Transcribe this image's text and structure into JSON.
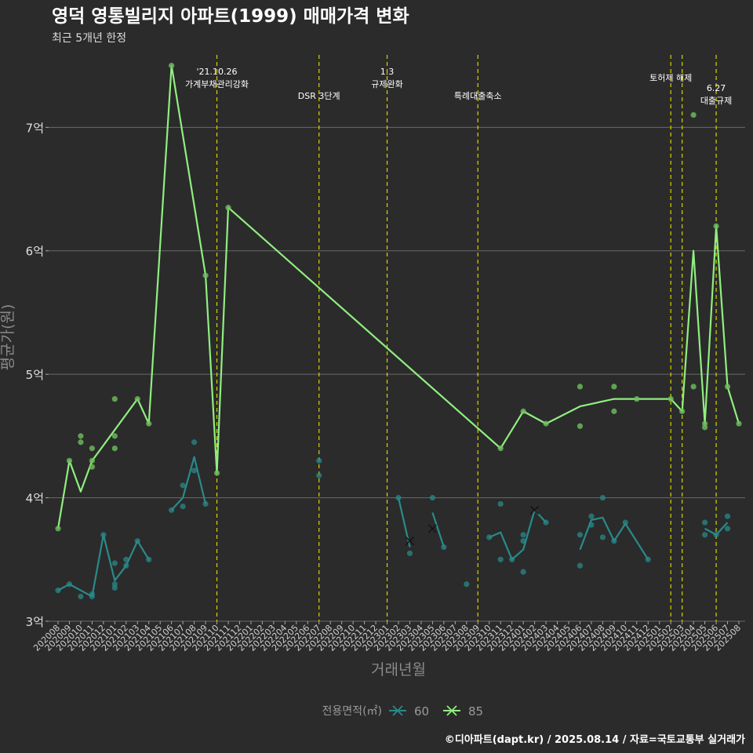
{
  "chart_data": {
    "type": "line",
    "title": "영덕 영통빌리지 아파트(1999) 매매가격 변화",
    "subtitle": "최근 5개년 한정",
    "xlabel": "거래년월",
    "ylabel": "평균가(원)",
    "ylim": [
      3,
      7.65
    ],
    "y_unit": "억",
    "y_ticks": [
      {
        "value": 3,
        "label": "3억"
      },
      {
        "value": 4,
        "label": "4억"
      },
      {
        "value": 5,
        "label": "5억"
      },
      {
        "value": 6,
        "label": "6억"
      },
      {
        "value": 7,
        "label": "7억"
      }
    ],
    "categories": [
      "202008",
      "202009",
      "202010",
      "202011",
      "202012",
      "202101",
      "202102",
      "202103",
      "202104",
      "202105",
      "202106",
      "202107",
      "202108",
      "202109",
      "202110",
      "202111",
      "202112",
      "202201",
      "202202",
      "202203",
      "202204",
      "202205",
      "202206",
      "202207",
      "202208",
      "202209",
      "202210",
      "202211",
      "202212",
      "202301",
      "202302",
      "202303",
      "202304",
      "202305",
      "202306",
      "202307",
      "202308",
      "202309",
      "202310",
      "202311",
      "202312",
      "202401",
      "202402",
      "202403",
      "202404",
      "202405",
      "202406",
      "202407",
      "202408",
      "202409",
      "202410",
      "202411",
      "202412",
      "202501",
      "202502",
      "202503",
      "202504",
      "202505",
      "202506",
      "202507",
      "202508"
    ],
    "grid": true,
    "legend": {
      "title": "전용면적(㎡)",
      "position": "bottom",
      "entries": [
        {
          "name": "60",
          "color": "#2a8a8a"
        },
        {
          "name": "85",
          "color": "#90ee80"
        }
      ]
    },
    "series": [
      {
        "name": "60",
        "color": "#2a8a8a",
        "line_segments": [
          [
            [
              "202008",
              3.25
            ],
            [
              "202009",
              3.3
            ],
            [
              "202011",
              3.2
            ]
          ],
          [
            [
              "202011",
              3.2
            ],
            [
              "202012",
              3.7
            ],
            [
              "202101",
              3.33
            ],
            [
              "202102",
              3.45
            ],
            [
              "202103",
              3.65
            ],
            [
              "202104",
              3.5
            ]
          ],
          [
            [
              "202106",
              3.9
            ],
            [
              "202107",
              4.0
            ],
            [
              "202108",
              4.33
            ],
            [
              "202109",
              3.95
            ]
          ],
          [
            [
              "202302",
              4.0
            ],
            [
              "202303",
              3.6
            ]
          ],
          [
            [
              "202305",
              3.88
            ],
            [
              "202306",
              3.6
            ]
          ],
          [
            [
              "202310",
              3.68
            ],
            [
              "202311",
              3.72
            ],
            [
              "202312",
              3.5
            ],
            [
              "202401",
              3.58
            ],
            [
              "202402",
              3.9
            ],
            [
              "202403",
              3.8
            ]
          ],
          [
            [
              "202406",
              3.58
            ],
            [
              "202407",
              3.82
            ],
            [
              "202408",
              3.84
            ],
            [
              "202409",
              3.65
            ],
            [
              "202410",
              3.79
            ],
            [
              "202412",
              3.5
            ]
          ],
          [
            [
              "202505",
              3.75
            ],
            [
              "202506",
              3.7
            ],
            [
              "202507",
              3.8
            ]
          ]
        ],
        "points": [
          [
            "202008",
            3.25
          ],
          [
            "202009",
            3.3
          ],
          [
            "202010",
            3.2
          ],
          [
            "202011",
            3.2
          ],
          [
            "202011",
            3.22
          ],
          [
            "202012",
            3.7
          ],
          [
            "202101",
            3.47
          ],
          [
            "202101",
            3.3
          ],
          [
            "202101",
            3.27
          ],
          [
            "202102",
            3.5
          ],
          [
            "202102",
            3.45
          ],
          [
            "202103",
            3.65
          ],
          [
            "202104",
            3.5
          ],
          [
            "202106",
            3.9
          ],
          [
            "202107",
            4.1
          ],
          [
            "202107",
            3.93
          ],
          [
            "202108",
            4.45
          ],
          [
            "202108",
            4.22
          ],
          [
            "202109",
            3.95
          ],
          [
            "202207",
            4.3
          ],
          [
            "202207",
            4.18
          ],
          [
            "202302",
            4.0
          ],
          [
            "202303",
            3.55
          ],
          [
            "202305",
            4.0
          ],
          [
            "202306",
            3.6
          ],
          [
            "202308",
            3.3
          ],
          [
            "202310",
            3.68
          ],
          [
            "202311",
            3.95
          ],
          [
            "202311",
            3.5
          ],
          [
            "202312",
            3.5
          ],
          [
            "202401",
            3.7
          ],
          [
            "202401",
            3.65
          ],
          [
            "202401",
            3.4
          ],
          [
            "202403",
            3.8
          ],
          [
            "202406",
            3.7
          ],
          [
            "202406",
            3.45
          ],
          [
            "202407",
            3.85
          ],
          [
            "202407",
            3.78
          ],
          [
            "202408",
            4.0
          ],
          [
            "202408",
            3.68
          ],
          [
            "202409",
            3.65
          ],
          [
            "202410",
            3.8
          ],
          [
            "202412",
            3.5
          ],
          [
            "202505",
            3.8
          ],
          [
            "202505",
            3.7
          ],
          [
            "202506",
            3.7
          ],
          [
            "202507",
            3.85
          ],
          [
            "202507",
            3.75
          ]
        ],
        "x_markers": [
          [
            "202303",
            3.65
          ],
          [
            "202305",
            3.75
          ],
          [
            "202402",
            3.9
          ]
        ]
      },
      {
        "name": "85",
        "color": "#90ee80",
        "line": [
          [
            "202008",
            3.75
          ],
          [
            "202009",
            4.3
          ],
          [
            "202010",
            4.05
          ],
          [
            "202011",
            4.3
          ],
          [
            "202103",
            4.8
          ],
          [
            "202104",
            4.6
          ],
          [
            "202106",
            7.5
          ],
          [
            "202109",
            5.8
          ],
          [
            "202110",
            4.2
          ],
          [
            "202111",
            6.35
          ],
          [
            "202311",
            4.4
          ],
          [
            "202401",
            4.7
          ],
          [
            "202403",
            4.6
          ],
          [
            "202406",
            4.74
          ],
          [
            "202409",
            4.8
          ],
          [
            "202411",
            4.8
          ],
          [
            "202502",
            4.8
          ],
          [
            "202503",
            4.7
          ],
          [
            "202504",
            6.0
          ],
          [
            "202505",
            4.6
          ],
          [
            "202506",
            6.2
          ],
          [
            "202507",
            4.9
          ],
          [
            "202508",
            4.6
          ]
        ],
        "points": [
          [
            "202008",
            3.75
          ],
          [
            "202009",
            4.3
          ],
          [
            "202010",
            4.5
          ],
          [
            "202010",
            4.45
          ],
          [
            "202011",
            4.4
          ],
          [
            "202011",
            4.3
          ],
          [
            "202011",
            4.25
          ],
          [
            "202101",
            4.8
          ],
          [
            "202101",
            4.5
          ],
          [
            "202101",
            4.4
          ],
          [
            "202103",
            4.8
          ],
          [
            "202104",
            4.6
          ],
          [
            "202106",
            7.5
          ],
          [
            "202109",
            5.8
          ],
          [
            "202110",
            4.2
          ],
          [
            "202111",
            6.35
          ],
          [
            "202311",
            4.4
          ],
          [
            "202401",
            4.7
          ],
          [
            "202403",
            4.6
          ],
          [
            "202406",
            4.9
          ],
          [
            "202406",
            4.58
          ],
          [
            "202409",
            4.9
          ],
          [
            "202409",
            4.7
          ],
          [
            "202411",
            4.8
          ],
          [
            "202502",
            4.8
          ],
          [
            "202503",
            4.7
          ],
          [
            "202504",
            7.1
          ],
          [
            "202504",
            4.9
          ],
          [
            "202505",
            4.6
          ],
          [
            "202505",
            4.57
          ],
          [
            "202506",
            6.2
          ],
          [
            "202507",
            4.9
          ],
          [
            "202508",
            4.6
          ]
        ]
      }
    ],
    "events": [
      {
        "x": "202110",
        "label": "'21.10.26\n가계부채관리강화",
        "level": 0,
        "align": "middle"
      },
      {
        "x": "202207",
        "label": "DSR 3단계",
        "level": 1,
        "align": "middle"
      },
      {
        "x": "202301",
        "label": "1.3\n규제완화",
        "level": 0,
        "align": "middle"
      },
      {
        "x": "202309",
        "label": "특례대출축소",
        "level": 1,
        "align": "middle"
      },
      {
        "x": "202502",
        "label": "토허제 해제",
        "level": 0,
        "align": "middle"
      },
      {
        "x": "202503",
        "label": "",
        "level": 0,
        "align": "middle"
      },
      {
        "x": "202506",
        "label": "6.27\n대출규제",
        "level": 2,
        "align": "middle"
      }
    ],
    "caption": "©디아파트(dapt.kr) / 2025.08.14 / 자료=국토교통부 실거래가"
  }
}
